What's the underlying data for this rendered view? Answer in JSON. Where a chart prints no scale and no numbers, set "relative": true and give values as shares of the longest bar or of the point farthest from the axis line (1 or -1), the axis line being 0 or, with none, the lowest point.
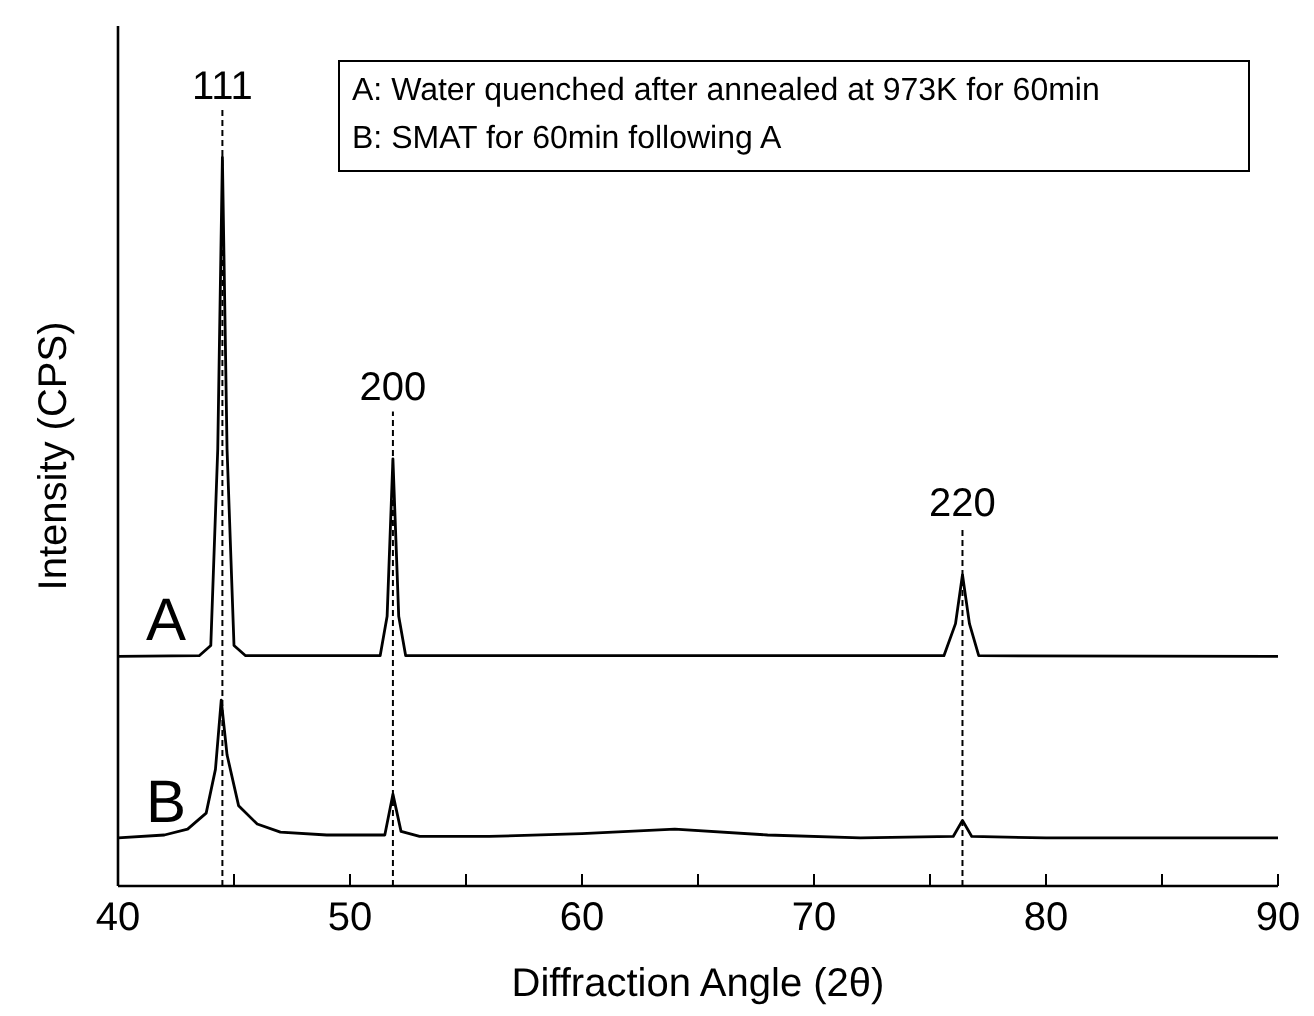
{
  "chart_data": {
    "type": "line",
    "relative": true,
    "xlabel": "Diffraction Angle (2θ)",
    "ylabel": "Intensity (CPS)",
    "xlim": [
      40,
      90
    ],
    "xticks": [
      40,
      {
        "value": 45,
        "label": null
      },
      50,
      {
        "value": 55,
        "label": null
      },
      60,
      {
        "value": 65,
        "label": null
      },
      70,
      {
        "value": 75,
        "label": null
      },
      80,
      {
        "value": 85,
        "label": null
      },
      90
    ],
    "tick_labels": "x",
    "grid": false,
    "legend": false,
    "marker": "none",
    "line_style": "solid",
    "annotations": [
      "A: Water quenched after annealed at 973K for 60min",
      "B: SMAT for 60min following A",
      "111",
      "200",
      "220"
    ],
    "ref_lines": [
      {
        "axis": "x",
        "value": 44.5,
        "line_style": "dashed",
        "color": "#000000"
      },
      {
        "axis": "x",
        "value": 51.85,
        "line_style": "dashed",
        "color": "#000000"
      },
      {
        "axis": "x",
        "value": 76.4,
        "line_style": "dashed",
        "color": "#000000"
      }
    ],
    "series": [
      {
        "name": "A",
        "color": "#000000",
        "x": [
          40,
          43.5,
          44,
          44.3,
          44.5,
          44.7,
          45,
          45.5,
          51.3,
          51.6,
          51.85,
          52.1,
          52.4,
          75.6,
          76.1,
          76.4,
          76.7,
          77.1,
          90
        ],
        "values": [
          0.315,
          0.316,
          0.33,
          0.6,
          1.0,
          0.6,
          0.33,
          0.316,
          0.316,
          0.37,
          0.586,
          0.37,
          0.316,
          0.316,
          0.36,
          0.427,
          0.36,
          0.316,
          0.315
        ]
      },
      {
        "name": "B",
        "color": "#000000",
        "x": [
          40,
          42,
          43,
          43.8,
          44.2,
          44.45,
          44.7,
          45.2,
          46,
          47,
          49,
          51.5,
          51.85,
          52.2,
          53,
          56,
          60,
          64,
          68,
          72,
          76,
          76.4,
          76.8,
          80,
          85,
          90
        ],
        "values": [
          0.066,
          0.07,
          0.078,
          0.1,
          0.16,
          0.255,
          0.18,
          0.11,
          0.085,
          0.074,
          0.07,
          0.07,
          0.126,
          0.075,
          0.068,
          0.068,
          0.072,
          0.078,
          0.07,
          0.066,
          0.068,
          0.09,
          0.068,
          0.066,
          0.066,
          0.066
        ]
      }
    ]
  }
}
